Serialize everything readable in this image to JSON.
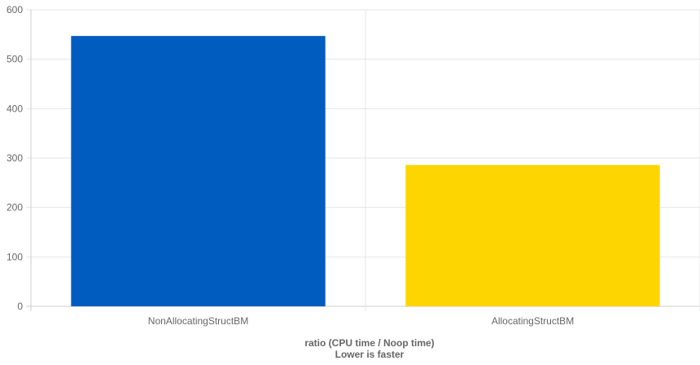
{
  "chart_data": {
    "type": "bar",
    "categories": [
      "NonAllocatingStructBM",
      "AllocatingStructBM"
    ],
    "values": [
      547,
      286
    ],
    "colors": [
      "#005cbf",
      "#fdd500"
    ],
    "xlabel": [
      "ratio (CPU time / Noop time)",
      "Lower is faster"
    ],
    "ylabel": "",
    "ylim": [
      0,
      600
    ],
    "yticks": [
      0,
      100,
      200,
      300,
      400,
      500,
      600
    ],
    "grid": true,
    "legend": "none"
  }
}
